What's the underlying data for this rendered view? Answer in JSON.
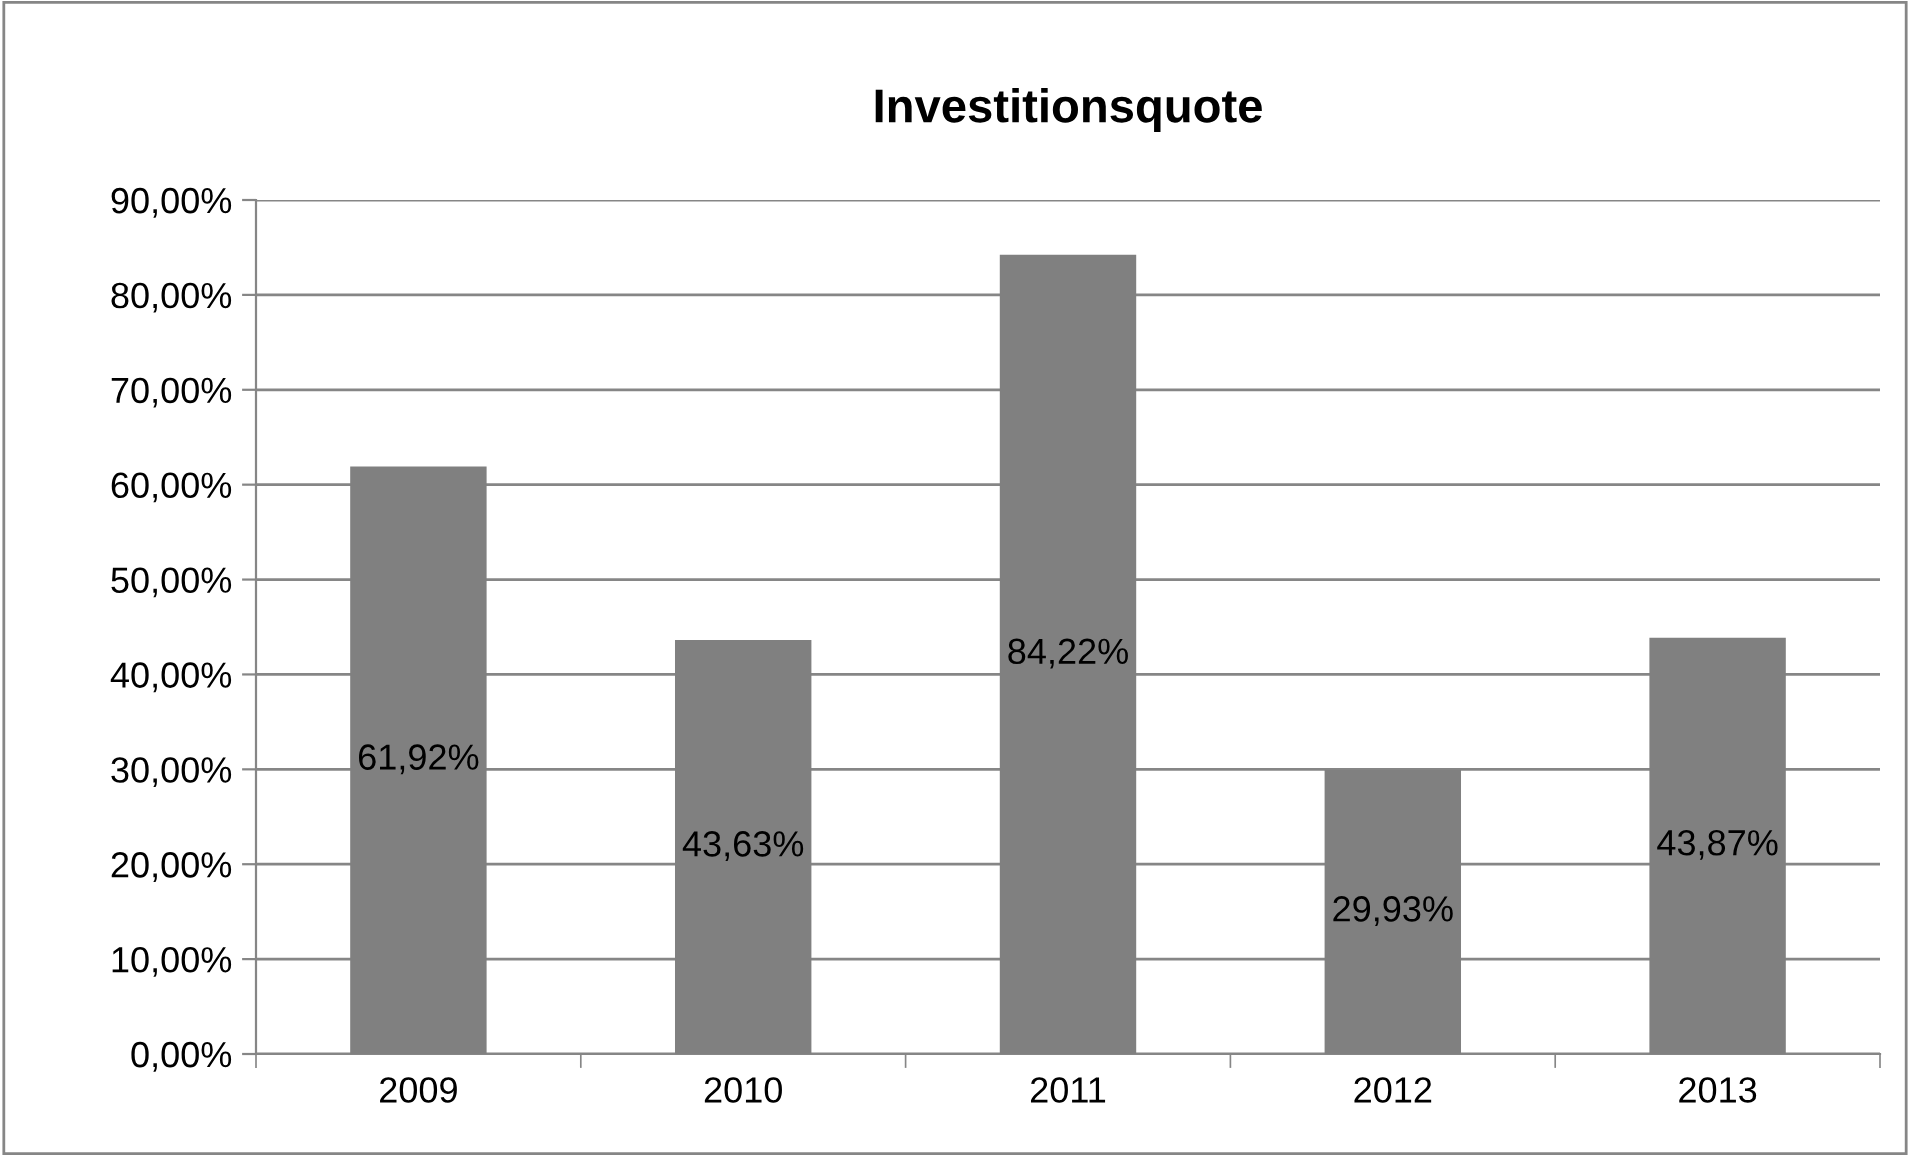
{
  "chart_data": {
    "type": "bar",
    "title": "Investitionsquote",
    "categories": [
      "2009",
      "2010",
      "2011",
      "2012",
      "2013"
    ],
    "values": [
      61.92,
      43.63,
      84.22,
      29.93,
      43.87
    ],
    "value_labels": [
      "61,92%",
      "43,63%",
      "84,22%",
      "29,93%",
      "43,87%"
    ],
    "color": "#808080",
    "ylim": [
      0,
      90
    ],
    "yticks": [
      {
        "value": 0,
        "label": "0,00%"
      },
      {
        "value": 10,
        "label": "10,00%"
      },
      {
        "value": 20,
        "label": "20,00%"
      },
      {
        "value": 30,
        "label": "30,00%"
      },
      {
        "value": 40,
        "label": "40,00%"
      },
      {
        "value": 50,
        "label": "50,00%"
      },
      {
        "value": 60,
        "label": "60,00%"
      },
      {
        "value": 70,
        "label": "70,00%"
      },
      {
        "value": 80,
        "label": "80,00%"
      },
      {
        "value": 90,
        "label": "90,00%"
      }
    ],
    "grid": "y",
    "legend": false
  }
}
